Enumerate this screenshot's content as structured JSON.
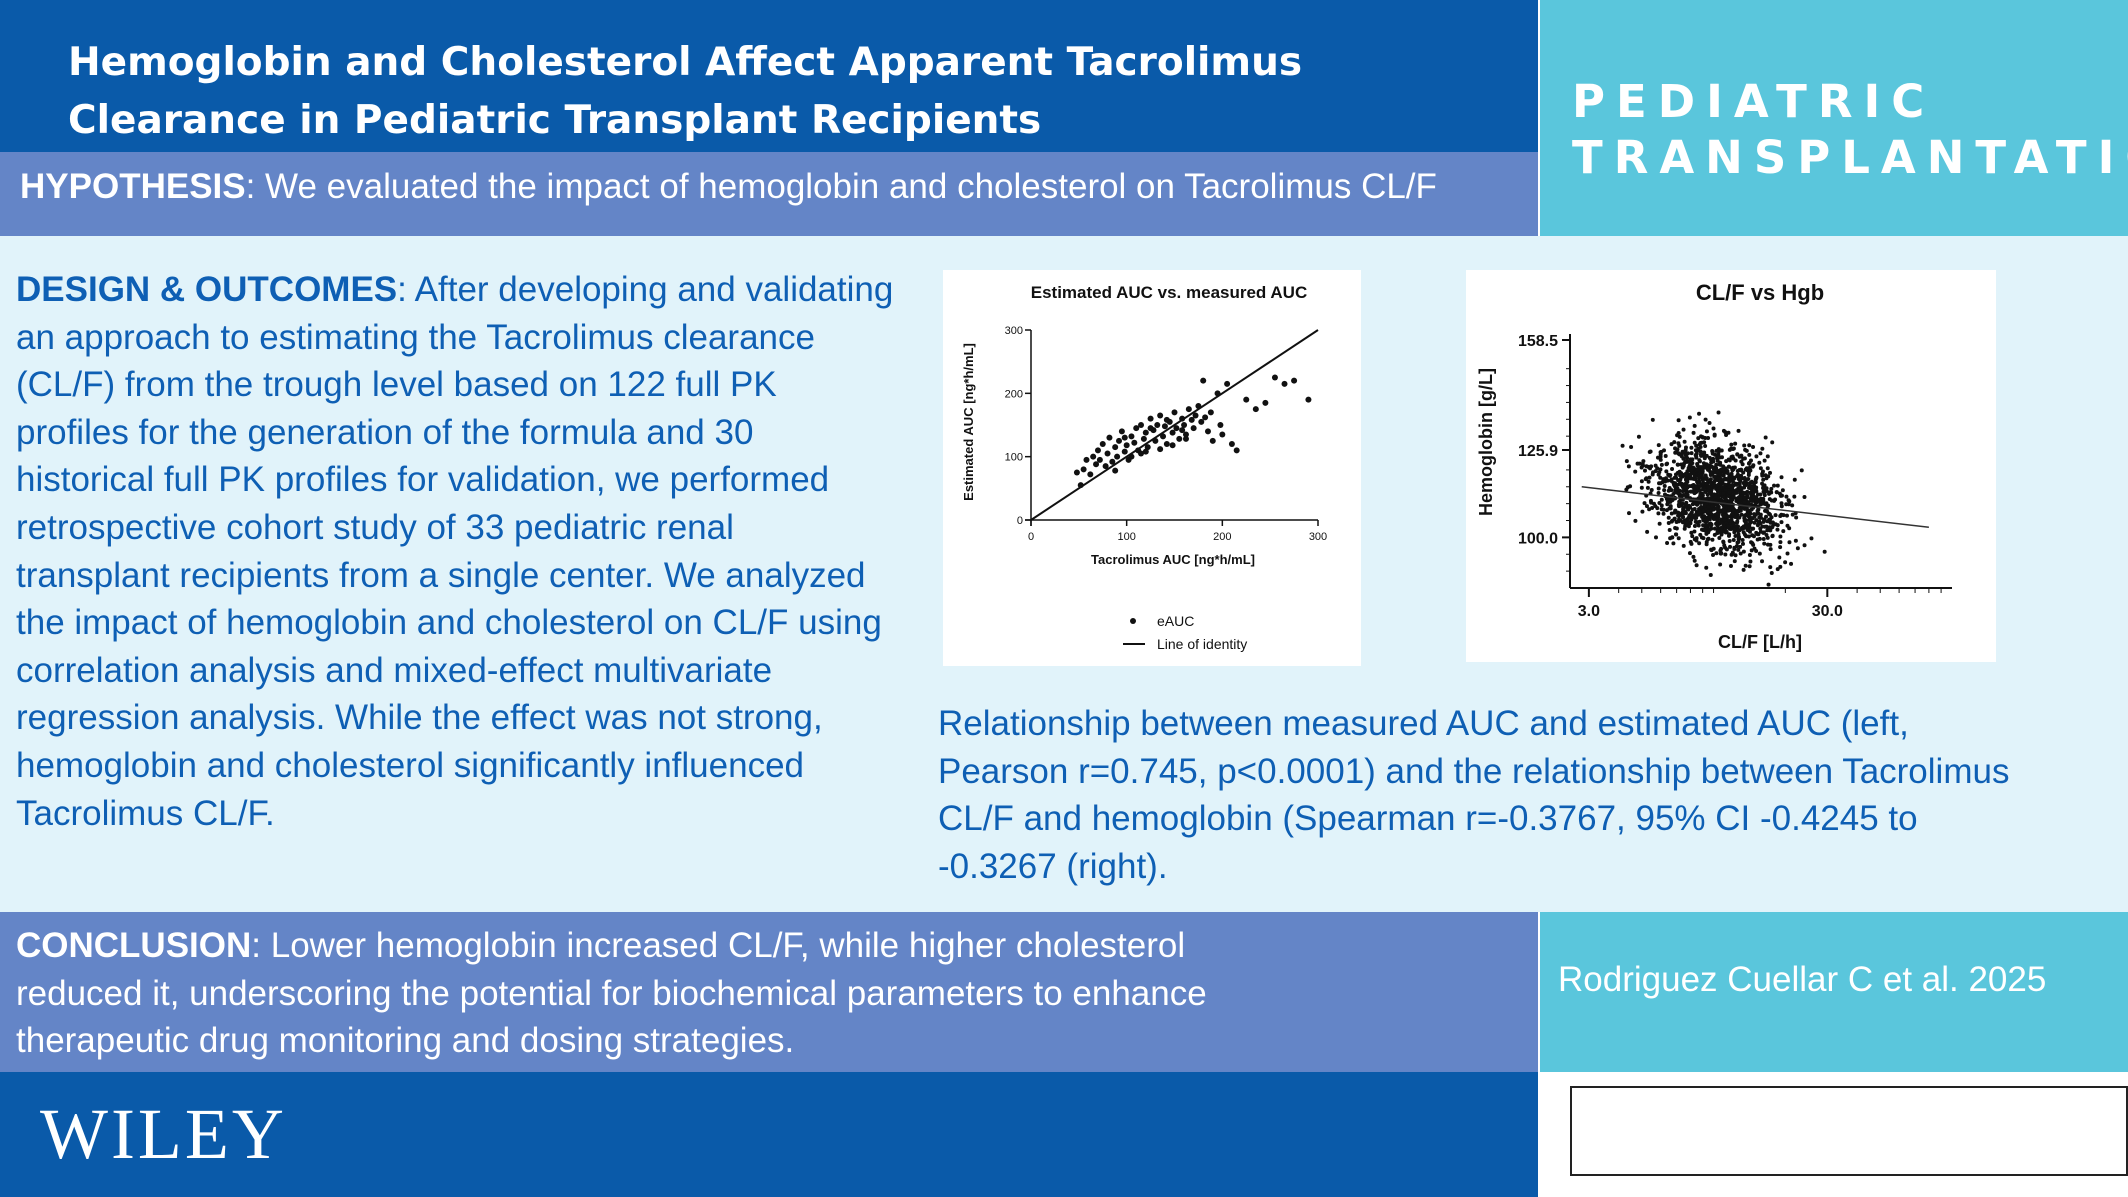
{
  "title": "Hemoglobin and Cholesterol Affect Apparent Tacrolimus Clearance in Pediatric Transplant Recipients",
  "journal": "PEDIATRIC TRANSPLANTATION",
  "hypothesis": {
    "label": "HYPOTHESIS",
    "text": ": We evaluated the impact of hemoglobin and cholesterol on Tacrolimus CL/F"
  },
  "design": {
    "label": "DESIGN & OUTCOMES",
    "text": ": After developing and validating an approach to estimating the Tacrolimus clearance (CL/F) from the trough level based on 122 full PK profiles for the generation of the formula and 30 historical full PK profiles for validation, we performed retrospective cohort study of 33 pediatric renal transplant recipients from a single center. We analyzed the impact of hemoglobin and cholesterol on CL/F using correlation analysis and mixed-effect multivariate regression analysis. While the effect was not strong, hemoglobin and cholesterol significantly influenced Tacrolimus CL/F."
  },
  "caption": "Relationship between measured AUC and estimated AUC (left, Pearson r=0.745, p<0.0001) and the relationship between Tacrolimus CL/F and hemoglobin (Spearman r=-0.3767, 95% CI -0.4245 to -0.3267 (right).",
  "conclusion": {
    "label": "CONCLUSION",
    "text": ": Lower hemoglobin increased CL/F, while higher cholesterol reduced it, underscoring the potential for biochemical parameters to enhance therapeutic drug monitoring and dosing strategies."
  },
  "author": "Rodriguez Cuellar C et al. 2025",
  "publisher": "WILEY",
  "colors": {
    "dark_blue": "#0a5aa9",
    "mid_blue": "#6485c7",
    "cyan": "#5ac6dc",
    "light_bg": "#e1f3fa",
    "text_blue": "#0e5fb4"
  },
  "chart_data": [
    {
      "type": "scatter",
      "title": "Estimated AUC vs. measured AUC",
      "xlabel": "Tacrolimus AUC [ng*h/mL]",
      "ylabel": "Estimated AUC [ng*h/mL]",
      "xlim": [
        0,
        300
      ],
      "ylim": [
        0,
        300
      ],
      "xticks": [
        0,
        100,
        200,
        300
      ],
      "yticks": [
        0,
        100,
        200,
        300
      ],
      "legend": [
        "eAUC",
        "Line of identity"
      ],
      "legend_position": "bottom",
      "series": [
        {
          "name": "eAUC",
          "points": [
            [
              48,
              75
            ],
            [
              52,
              55
            ],
            [
              55,
              80
            ],
            [
              58,
              95
            ],
            [
              62,
              72
            ],
            [
              65,
              100
            ],
            [
              68,
              88
            ],
            [
              70,
              110
            ],
            [
              72,
              95
            ],
            [
              75,
              120
            ],
            [
              78,
              85
            ],
            [
              80,
              105
            ],
            [
              82,
              130
            ],
            [
              85,
              92
            ],
            [
              88,
              115
            ],
            [
              90,
              100
            ],
            [
              92,
              125
            ],
            [
              95,
              140
            ],
            [
              98,
              108
            ],
            [
              100,
              118
            ],
            [
              102,
              95
            ],
            [
              105,
              132
            ],
            [
              108,
              122
            ],
            [
              110,
              145
            ],
            [
              112,
              110
            ],
            [
              115,
              150
            ],
            [
              118,
              128
            ],
            [
              120,
              138
            ],
            [
              122,
              115
            ],
            [
              125,
              160
            ],
            [
              128,
              142
            ],
            [
              130,
              125
            ],
            [
              132,
              150
            ],
            [
              135,
              165
            ],
            [
              138,
              132
            ],
            [
              140,
              148
            ],
            [
              142,
              120
            ],
            [
              145,
              155
            ],
            [
              148,
              138
            ],
            [
              150,
              170
            ],
            [
              152,
              145
            ],
            [
              155,
              128
            ],
            [
              158,
              160
            ],
            [
              160,
              150
            ],
            [
              162,
              135
            ],
            [
              165,
              175
            ],
            [
              168,
              158
            ],
            [
              170,
              145
            ],
            [
              172,
              165
            ],
            [
              175,
              180
            ],
            [
              178,
              155
            ],
            [
              180,
              220
            ],
            [
              182,
              162
            ],
            [
              185,
              140
            ],
            [
              188,
              170
            ],
            [
              190,
              125
            ],
            [
              195,
              200
            ],
            [
              198,
              150
            ],
            [
              200,
              135
            ],
            [
              205,
              215
            ],
            [
              210,
              120
            ],
            [
              215,
              110
            ],
            [
              225,
              190
            ],
            [
              235,
              175
            ],
            [
              245,
              185
            ],
            [
              255,
              225
            ],
            [
              265,
              215
            ],
            [
              275,
              220
            ],
            [
              290,
              190
            ],
            [
              120,
              108
            ],
            [
              105,
              100
            ],
            [
              88,
              78
            ],
            [
              135,
              112
            ],
            [
              148,
              118
            ],
            [
              162,
              128
            ],
            [
              98,
              130
            ],
            [
              115,
              105
            ],
            [
              142,
              158
            ],
            [
              158,
              142
            ],
            [
              125,
              145
            ]
          ]
        },
        {
          "name": "Line of identity",
          "line": [
            [
              0,
              0
            ],
            [
              300,
              300
            ]
          ]
        }
      ]
    },
    {
      "type": "scatter",
      "title": "CL/F vs Hgb",
      "xlabel": "CL/F [L/h]",
      "ylabel": "Hemoglobin [g/L]",
      "xscale": "log",
      "xlim": [
        2.5,
        100
      ],
      "ylim": [
        85,
        158.5
      ],
      "xticks": [
        3.0,
        30.0
      ],
      "yticks": [
        100.0,
        125.9,
        158.5
      ],
      "n_points": 1500,
      "trend_line": [
        [
          2.8,
          115
        ],
        [
          80,
          103
        ]
      ]
    }
  ]
}
